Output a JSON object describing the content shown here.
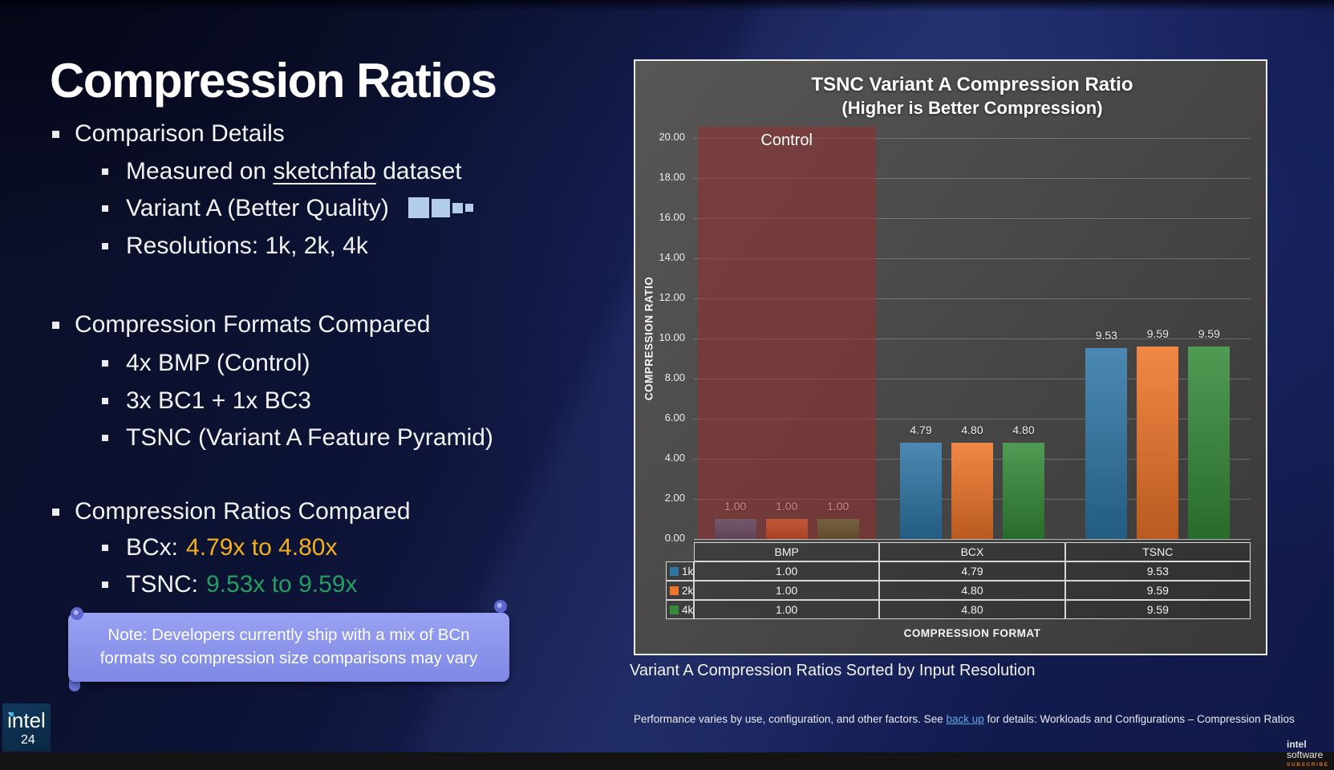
{
  "slide_title": "Compression Ratios",
  "sections": {
    "details": {
      "heading": "Comparison Details",
      "item1_pre": "Measured on ",
      "item1_link": "sketchfab",
      "item1_post": " dataset",
      "item2": "Variant A (Better Quality)",
      "item2_icon": "mip-pyramid-icon",
      "item3": "Resolutions: 1k, 2k, 4k"
    },
    "formats": {
      "heading": "Compression Formats Compared",
      "item1": "4x BMP (Control)",
      "item2": "3x BC1 + 1x BC3",
      "item3": "TSNC (Variant A Feature Pyramid)"
    },
    "ratios": {
      "heading": "Compression Ratios Compared",
      "item1_label": "BCx:",
      "item1_value": "4.79x to 4.80x",
      "item1_color": "#f3b01c",
      "item2_label": "TSNC:",
      "item2_value": "9.53x to 9.59x",
      "item2_color": "#23a05f"
    }
  },
  "note": {
    "line1": "Note: Developers currently ship with a mix of BCn",
    "line2": "formats so compression size comparisons may vary",
    "bg_color": "#8a94ec"
  },
  "chart_caption": "Variant A Compression Ratios Sorted by Input Resolution",
  "footnote": {
    "pre": "Performance varies by use, configuration, and other factors. See ",
    "link": "back up",
    "link_color": "#62a6e3",
    "post": " for details: Workloads and Configurations – Compression Ratios"
  },
  "footer": {
    "intel_logo": "intel",
    "intel_dot_color": "#3cb4e6",
    "year": "24",
    "software_line1": "intel",
    "software_line2": "software",
    "software_line3": "SUBSCRIBE",
    "subscribe_color": "#e0731f"
  },
  "chart_data": {
    "type": "bar",
    "title": "TSNC Variant A Compression Ratio",
    "subtitle": "(Higher is Better Compression)",
    "xlabel": "COMPRESSION FORMAT",
    "ylabel": "COMPRESSION RATIO",
    "ylim": [
      0,
      20
    ],
    "ytick_step": 2,
    "ytick_decimals": 2,
    "grid": true,
    "legend_position": "table-left",
    "categories": [
      "BMP",
      "BCX",
      "TSNC"
    ],
    "series": [
      {
        "name": "1k",
        "color": "#2e76a6",
        "values": [
          1.0,
          4.79,
          9.53
        ]
      },
      {
        "name": "2k",
        "color": "#ee7428",
        "values": [
          1.0,
          4.8,
          9.59
        ]
      },
      {
        "name": "4k",
        "color": "#338a38",
        "values": [
          1.0,
          4.8,
          9.59
        ]
      }
    ],
    "annotation": {
      "label": "Control",
      "covers_category": "BMP",
      "color": "rgba(151,44,44,0.52)"
    }
  }
}
